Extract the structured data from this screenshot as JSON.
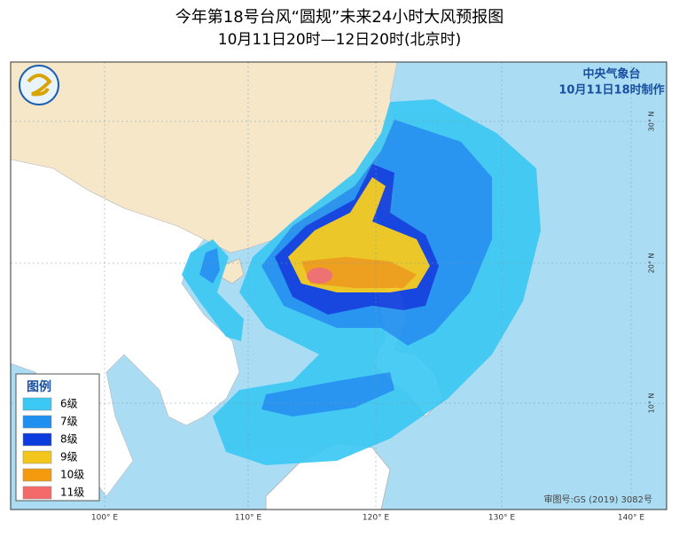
{
  "header": {
    "title": "今年第18号台风“圆规”未来24小时大风预报图",
    "subtitle": "10月11日20时—12日20时(北京时)"
  },
  "agency": {
    "name": "中央气象台",
    "issued": "10月11日18时制作"
  },
  "legend": {
    "title": "图例",
    "items": [
      {
        "label": "6级",
        "color": "#3cc8f4"
      },
      {
        "label": "7级",
        "color": "#1f8ff0"
      },
      {
        "label": "8级",
        "color": "#0c3bde"
      },
      {
        "label": "9级",
        "color": "#f2c61a"
      },
      {
        "label": "10级",
        "color": "#f39a0e"
      },
      {
        "label": "11级",
        "color": "#f46a6a"
      }
    ]
  },
  "map": {
    "lon_labels": [
      "100° E",
      "110° E",
      "120° E",
      "130° E",
      "140° E"
    ],
    "lat_labels": [
      "30° N",
      "20° N",
      "10° N"
    ],
    "approval": "审图号:GS (2019) 3082号"
  }
}
